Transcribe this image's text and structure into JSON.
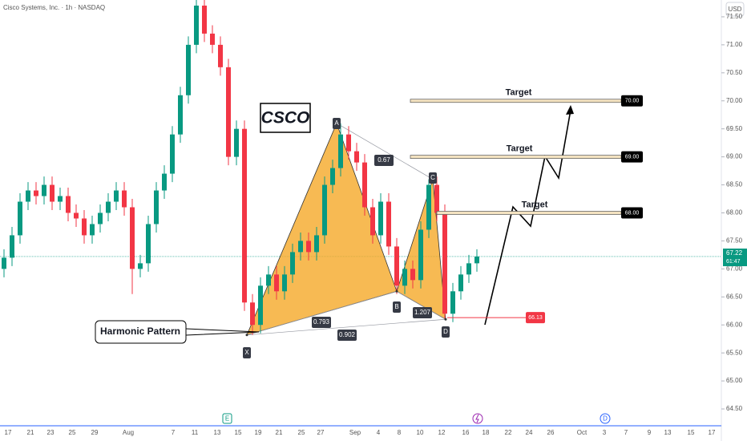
{
  "chart_data": {
    "type": "candlestick",
    "title": "Cisco Systems, Inc. · 1h · NASDAQ",
    "currency": "USD",
    "symbol_note": "CSCO",
    "pattern_note": "Harmonic Pattern",
    "up_color": "#089981",
    "down_color": "#f23645",
    "ylim": [
      64.35,
      71.8
    ],
    "yticks": [
      {
        "value": 64.5,
        "label": "64.50"
      },
      {
        "value": 65,
        "label": "65.00"
      },
      {
        "value": 65.5,
        "label": "65.50"
      },
      {
        "value": 66,
        "label": "66.00"
      },
      {
        "value": 66.5,
        "label": "66.50"
      },
      {
        "value": 67,
        "label": "67.00"
      },
      {
        "value": 67.5,
        "label": "67.50"
      },
      {
        "value": 68,
        "label": "68.00"
      },
      {
        "value": 68.5,
        "label": "68.50"
      },
      {
        "value": 69,
        "label": "69.00"
      },
      {
        "value": 69.5,
        "label": "69.50"
      },
      {
        "value": 70,
        "label": "70.00"
      },
      {
        "value": 70.5,
        "label": "70.50"
      },
      {
        "value": 71,
        "label": "71.00"
      },
      {
        "value": 71.5,
        "label": "71.50"
      }
    ],
    "x_labels": [
      "17",
      "21",
      "23",
      "25",
      "29",
      "Aug",
      "7",
      "11",
      "13",
      "15",
      "19",
      "21",
      "25",
      "27",
      "Sep",
      "4",
      "8",
      "10",
      "12",
      "16",
      "18",
      "22",
      "24",
      "26",
      "Oct",
      "3",
      "7",
      "9",
      "13",
      "15",
      "17"
    ],
    "candles": [
      [
        67.0,
        67.35,
        66.85,
        67.2
      ],
      [
        67.2,
        67.75,
        67.05,
        67.6
      ],
      [
        67.6,
        68.35,
        67.45,
        68.2
      ],
      [
        68.2,
        68.55,
        68.05,
        68.4
      ],
      [
        68.4,
        68.55,
        68.15,
        68.3
      ],
      [
        68.3,
        68.65,
        68.15,
        68.5
      ],
      [
        68.5,
        68.65,
        68.05,
        68.2
      ],
      [
        68.2,
        68.45,
        68.05,
        68.3
      ],
      [
        68.3,
        68.45,
        67.85,
        68.0
      ],
      [
        68.0,
        68.15,
        67.75,
        67.9
      ],
      [
        67.9,
        68.05,
        67.45,
        67.6
      ],
      [
        67.6,
        67.95,
        67.45,
        67.8
      ],
      [
        67.8,
        68.15,
        67.65,
        68.0
      ],
      [
        68.0,
        68.35,
        67.85,
        68.2
      ],
      [
        68.2,
        68.55,
        68.05,
        68.4
      ],
      [
        68.4,
        68.55,
        67.95,
        68.1
      ],
      [
        68.1,
        68.25,
        66.55,
        67.0
      ],
      [
        67.0,
        67.25,
        66.85,
        67.1
      ],
      [
        67.1,
        67.95,
        66.95,
        67.8
      ],
      [
        67.8,
        68.55,
        67.65,
        68.4
      ],
      [
        68.4,
        68.85,
        68.25,
        68.7
      ],
      [
        68.7,
        69.55,
        68.55,
        69.4
      ],
      [
        69.4,
        70.25,
        69.25,
        70.1
      ],
      [
        70.1,
        71.15,
        69.95,
        71.0
      ],
      [
        71.0,
        71.95,
        70.85,
        71.7
      ],
      [
        71.7,
        71.85,
        71.05,
        71.2
      ],
      [
        71.2,
        71.35,
        70.85,
        71.0
      ],
      [
        71.0,
        71.15,
        70.45,
        70.6
      ],
      [
        70.6,
        70.75,
        68.85,
        69.0
      ],
      [
        69.0,
        69.65,
        68.85,
        69.5
      ],
      [
        69.5,
        69.65,
        66.25,
        66.4
      ],
      [
        66.4,
        66.55,
        65.82,
        66.0
      ],
      [
        66.0,
        66.85,
        65.85,
        66.7
      ],
      [
        66.7,
        67.05,
        66.55,
        66.9
      ],
      [
        66.9,
        67.05,
        66.45,
        66.6
      ],
      [
        66.6,
        67.05,
        66.45,
        66.9
      ],
      [
        66.9,
        67.45,
        66.75,
        67.3
      ],
      [
        67.3,
        67.65,
        67.15,
        67.5
      ],
      [
        67.5,
        67.65,
        67.15,
        67.3
      ],
      [
        67.3,
        67.75,
        67.15,
        67.6
      ],
      [
        67.6,
        68.65,
        67.45,
        68.5
      ],
      [
        68.5,
        68.95,
        68.35,
        68.8
      ],
      [
        68.8,
        69.6,
        68.65,
        69.4
      ],
      [
        69.4,
        69.55,
        68.95,
        69.1
      ],
      [
        69.1,
        69.25,
        68.75,
        68.9
      ],
      [
        68.9,
        69.05,
        67.95,
        68.1
      ],
      [
        68.1,
        68.25,
        67.45,
        67.6
      ],
      [
        67.6,
        68.35,
        67.45,
        68.2
      ],
      [
        68.2,
        68.35,
        67.25,
        67.4
      ],
      [
        67.4,
        67.55,
        66.55,
        66.7
      ],
      [
        66.7,
        67.15,
        66.55,
        67.0
      ],
      [
        67.0,
        67.15,
        66.65,
        66.8
      ],
      [
        66.8,
        67.85,
        66.65,
        67.7
      ],
      [
        67.7,
        68.6,
        67.55,
        68.5
      ],
      [
        68.5,
        68.65,
        67.85,
        68.0
      ],
      [
        68.0,
        68.15,
        66.1,
        66.2
      ],
      [
        66.2,
        66.75,
        66.05,
        66.6
      ],
      [
        66.6,
        67.05,
        66.45,
        66.9
      ],
      [
        66.9,
        67.25,
        66.75,
        67.1
      ],
      [
        67.1,
        67.35,
        66.95,
        67.22
      ]
    ],
    "pattern_points": [
      {
        "label": "X",
        "price": 65.82
      },
      {
        "label": "A",
        "price": 69.6
      },
      {
        "label": "B",
        "price": 66.6
      },
      {
        "label": "C",
        "price": 68.6
      },
      {
        "label": "D",
        "price": 66.1
      }
    ],
    "ratios": [
      0.67,
      0.793,
      0.902,
      1.207
    ],
    "targets": [
      {
        "label": "Target",
        "price": {
          "value": 70,
          "label": "70.00"
        }
      },
      {
        "label": "Target",
        "price": {
          "value": 69,
          "label": "69.00"
        }
      },
      {
        "label": "Target",
        "price": {
          "value": 68,
          "label": "68.00"
        }
      }
    ],
    "stop": 66.13,
    "last_price": 67.22,
    "countdown": "61:47",
    "events": [
      "E",
      "D"
    ]
  }
}
